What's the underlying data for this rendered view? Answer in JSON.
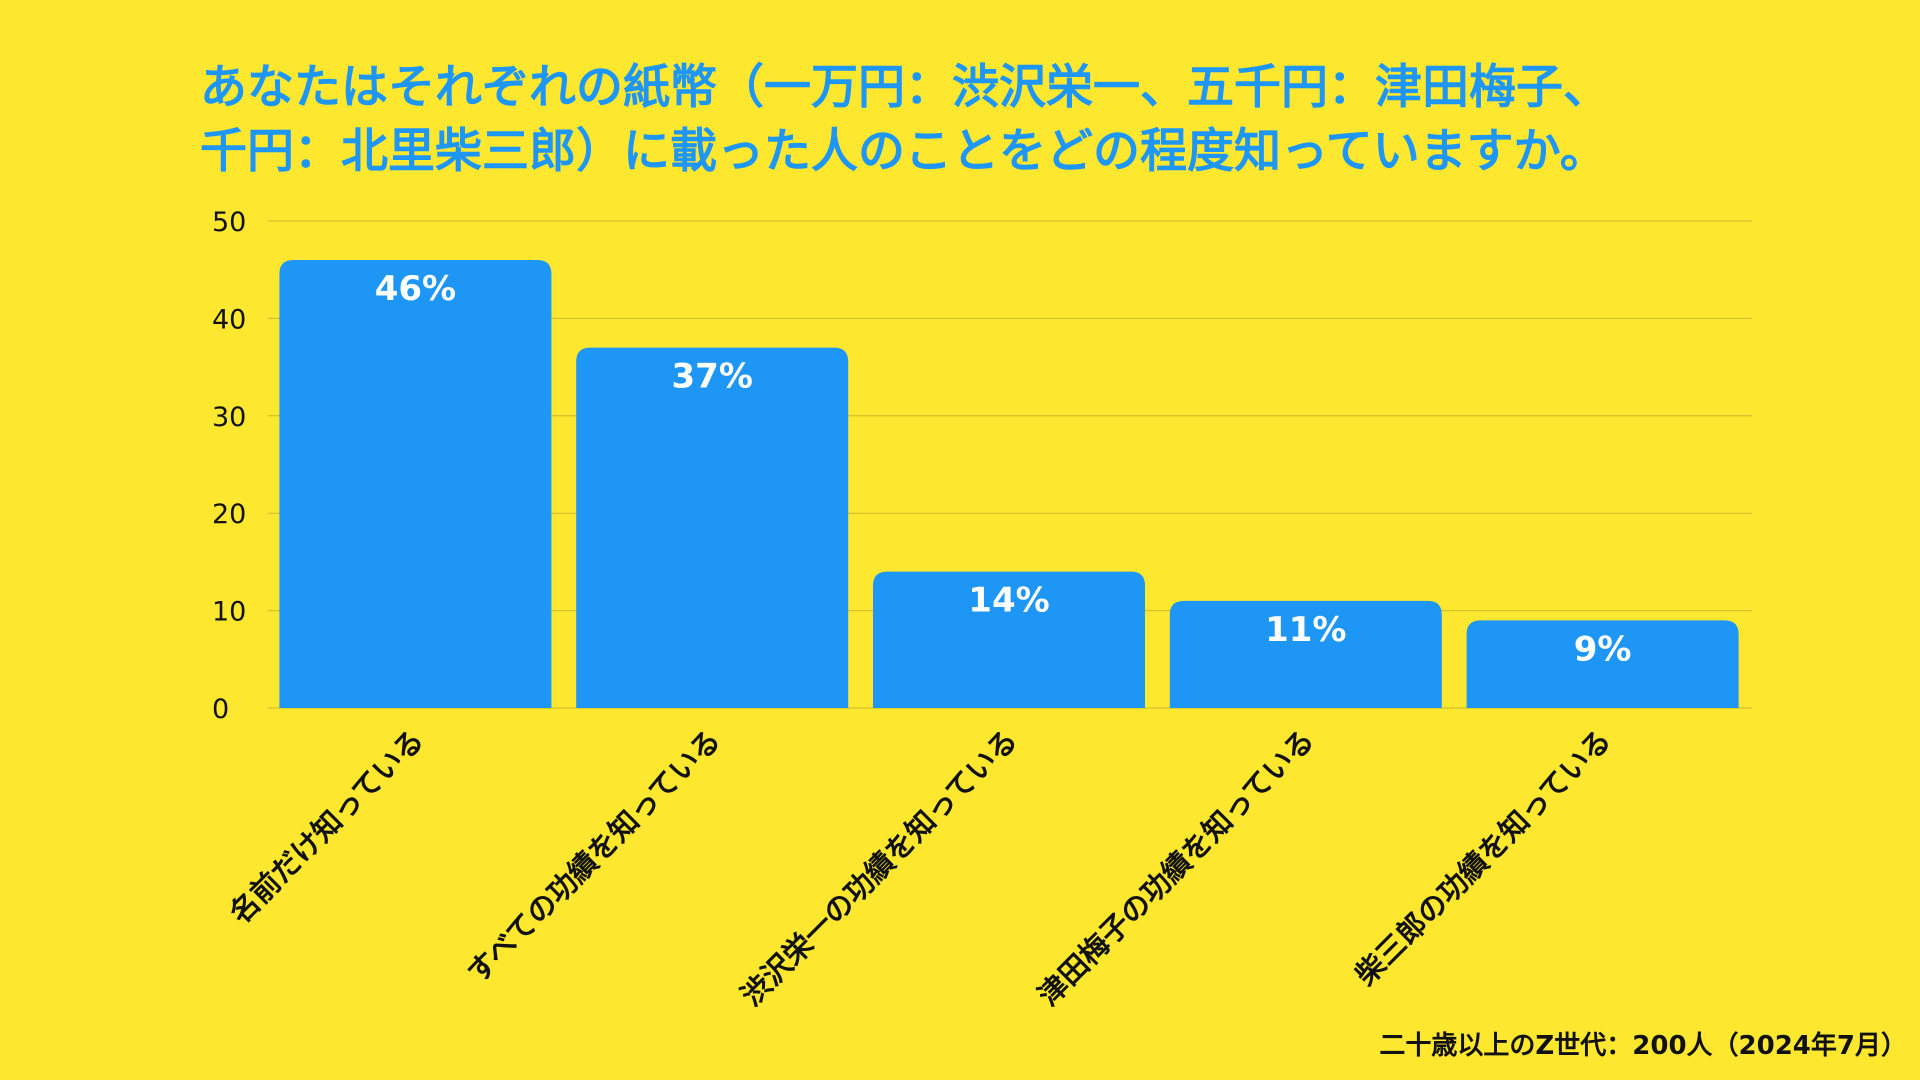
{
  "chart_data": {
    "type": "bar",
    "title_lines": [
      "あなたはそれぞれの紙幣（一万円：渋沢栄一、五千円：津田梅子、",
      "千円：北里柴三郎）に載った人のことをどの程度知っていますか。"
    ],
    "categories": [
      "名前だけ知っている",
      "すべての功績を知っている",
      "渋沢栄一の功績を知っている",
      "津田梅子の功績を知っている",
      "柴三郎の功績を知っている"
    ],
    "values": [
      46,
      37,
      14,
      11,
      9
    ],
    "value_labels": [
      "46%",
      "37%",
      "14%",
      "11%",
      "9%"
    ],
    "yticks": [
      "0",
      "10",
      "20",
      "30",
      "40",
      "50"
    ],
    "ylim": [
      0,
      50
    ],
    "grid": true,
    "legend": "none",
    "colors": {
      "background": "#fde72f",
      "bar": "#1e96f6",
      "title": "#1e96f6",
      "grid": "#c9b92a",
      "text": "#111111",
      "bar_label": "#ffffff"
    }
  },
  "footnote": "二十歳以上のZ世代：200人（2024年7月）"
}
